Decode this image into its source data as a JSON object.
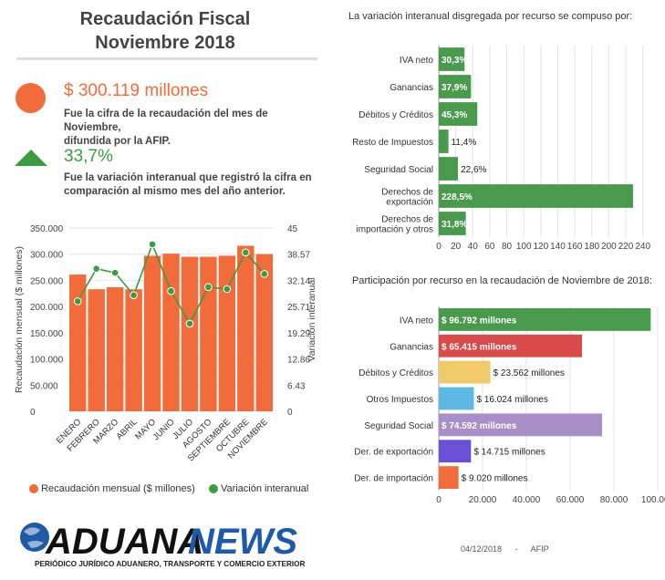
{
  "header": {
    "title_line1": "Recaudación Fiscal",
    "title_line2": "Noviembre 2018"
  },
  "kpis": [
    {
      "value": "$ 300.119 millones",
      "description_line1": "Fue la cifra de la recaudación del mes de Noviembre,",
      "description_line2": "difundida por la AFIP.",
      "icon": "orange-circle-icon",
      "color": "#f26b3a"
    },
    {
      "value": "33,7%",
      "description_line1": "Fue la variación interanual que registró la cifra en",
      "description_line2": "comparación al mismo mes del año anterior.",
      "icon": "green-triangle-up-icon",
      "color": "#3e9a43"
    }
  ],
  "chart_data": [
    {
      "type": "bar+line",
      "categories": [
        "ENERO",
        "FEBRERO",
        "MARZO",
        "ABRIL",
        "MAYO",
        "JUNIO",
        "JULIO",
        "AGOSTO",
        "SEPTIEMBRE",
        "OCTUBRE",
        "NOVIEMBRE"
      ],
      "series": [
        {
          "name": "Recaudación mensual ($ millones)",
          "type": "bar",
          "axis": "left",
          "color": "#f26b3a",
          "values": [
            261000,
            233000,
            237000,
            233000,
            297000,
            301000,
            295000,
            295000,
            297000,
            316000,
            300119
          ]
        },
        {
          "name": "Variación interanual",
          "type": "line",
          "axis": "right",
          "color": "#3e9a43",
          "values": [
            27.0,
            35.0,
            34.0,
            28.5,
            41.0,
            29.5,
            21.5,
            30.5,
            30.0,
            39.0,
            33.7
          ]
        }
      ],
      "ylabel": "Recaudación mensual ($ millones)",
      "y2label": "Variación interanual",
      "ylim": [
        0,
        350000
      ],
      "yticks": [
        "0",
        "50.000",
        "100.000",
        "150.000",
        "200.000",
        "250.000",
        "300.000",
        "350.000"
      ],
      "y2lim": [
        0,
        45
      ],
      "y2ticks": [
        "0",
        "6.43",
        "12.86",
        "19.29",
        "25.71",
        "32.14",
        "38.57",
        "45"
      ],
      "legend": [
        "Recaudación mensual ($ millones)",
        "Variación interanual"
      ],
      "legend_placement": "bottom"
    },
    {
      "type": "bar",
      "orientation": "horizontal",
      "title": "La variación interanual disgregada por recurso se compuso por:",
      "categories": [
        "IVA neto",
        "Ganancias",
        "Débitos y Créditos",
        "Resto de Impuestos",
        "Seguridad Social",
        "Derechos de exportación",
        "Derechos de importación y otros"
      ],
      "values": [
        30.3,
        37.9,
        45.3,
        11.4,
        22.6,
        228.5,
        31.8
      ],
      "labels": [
        "30,3%",
        "37,9%",
        "45,3%",
        "11,4%",
        "22,6%",
        "228,5%",
        "31,8%"
      ],
      "xlim": [
        0,
        250
      ],
      "xticks": [
        "0",
        "20",
        "40",
        "60",
        "80",
        "100",
        "120",
        "140",
        "160",
        "180",
        "200",
        "220",
        "240"
      ],
      "color": "#4a9a4e"
    },
    {
      "type": "bar",
      "orientation": "horizontal",
      "title": "Participación por recurso en la recaudación de Noviembre de 2018:",
      "categories": [
        "IVA neto",
        "Ganancias",
        "Débitos y Créditos",
        "Otros Impuestos",
        "Seguridad Social",
        "Der. de exportación",
        "Der. de importación"
      ],
      "values": [
        96792,
        65415,
        23562,
        16024,
        74592,
        14715,
        9020
      ],
      "labels": [
        "$ 96.792 millones",
        "$ 65.415 millones",
        "$ 23.562 millones",
        "$ 16.024 millones",
        "$ 74.592 millones",
        "$ 14.715 millones",
        "$ 9.020 millones"
      ],
      "colors": [
        "#4a9a4e",
        "#d94a4a",
        "#f0c96a",
        "#5db8e3",
        "#a98fc8",
        "#6b50d6",
        "#f26b3a"
      ],
      "xlim": [
        0,
        100000
      ],
      "xticks": [
        "0",
        "20.000",
        "40.000",
        "60.000",
        "80.000",
        "100.000"
      ]
    }
  ],
  "logo": {
    "text": "ADUANA NEWS",
    "tagline": "PERIÓDICO JURÍDICO ADUANERO, TRANSPORTE Y COMERCIO EXTERIOR"
  },
  "footer": {
    "date": "04/12/2018",
    "separator": "-",
    "source": "AFIP"
  }
}
